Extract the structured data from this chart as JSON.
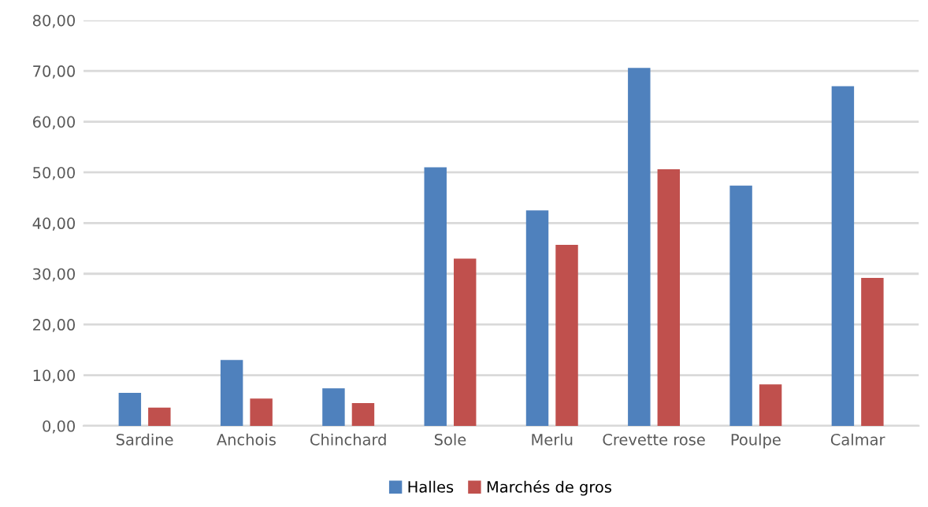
{
  "chart_data": {
    "type": "bar",
    "categories": [
      "Sardine",
      "Anchois",
      "Chinchard",
      "Sole",
      "Merlu",
      "Crevette rose",
      "Poulpe",
      "Calmar"
    ],
    "series": [
      {
        "name": "Halles",
        "color": "#4f81bd",
        "values": [
          6.5,
          13.0,
          7.4,
          51.0,
          42.5,
          70.6,
          47.4,
          67.0
        ]
      },
      {
        "name": "Marchés de gros",
        "color": "#c0504d",
        "values": [
          3.6,
          5.4,
          4.5,
          33.0,
          35.7,
          50.6,
          8.2,
          29.2
        ]
      }
    ],
    "ylim": [
      0,
      80
    ],
    "yticks": [
      {
        "value": 0,
        "label": "0,00"
      },
      {
        "value": 10,
        "label": "10,00"
      },
      {
        "value": 20,
        "label": "20,00"
      },
      {
        "value": 30,
        "label": "30,00"
      },
      {
        "value": 40,
        "label": "40,00"
      },
      {
        "value": 50,
        "label": "50,00"
      },
      {
        "value": 60,
        "label": "60,00"
      },
      {
        "value": 70,
        "label": "70,00"
      },
      {
        "value": 80,
        "label": "80,00"
      }
    ],
    "grid": "y",
    "legend": "bottom"
  }
}
